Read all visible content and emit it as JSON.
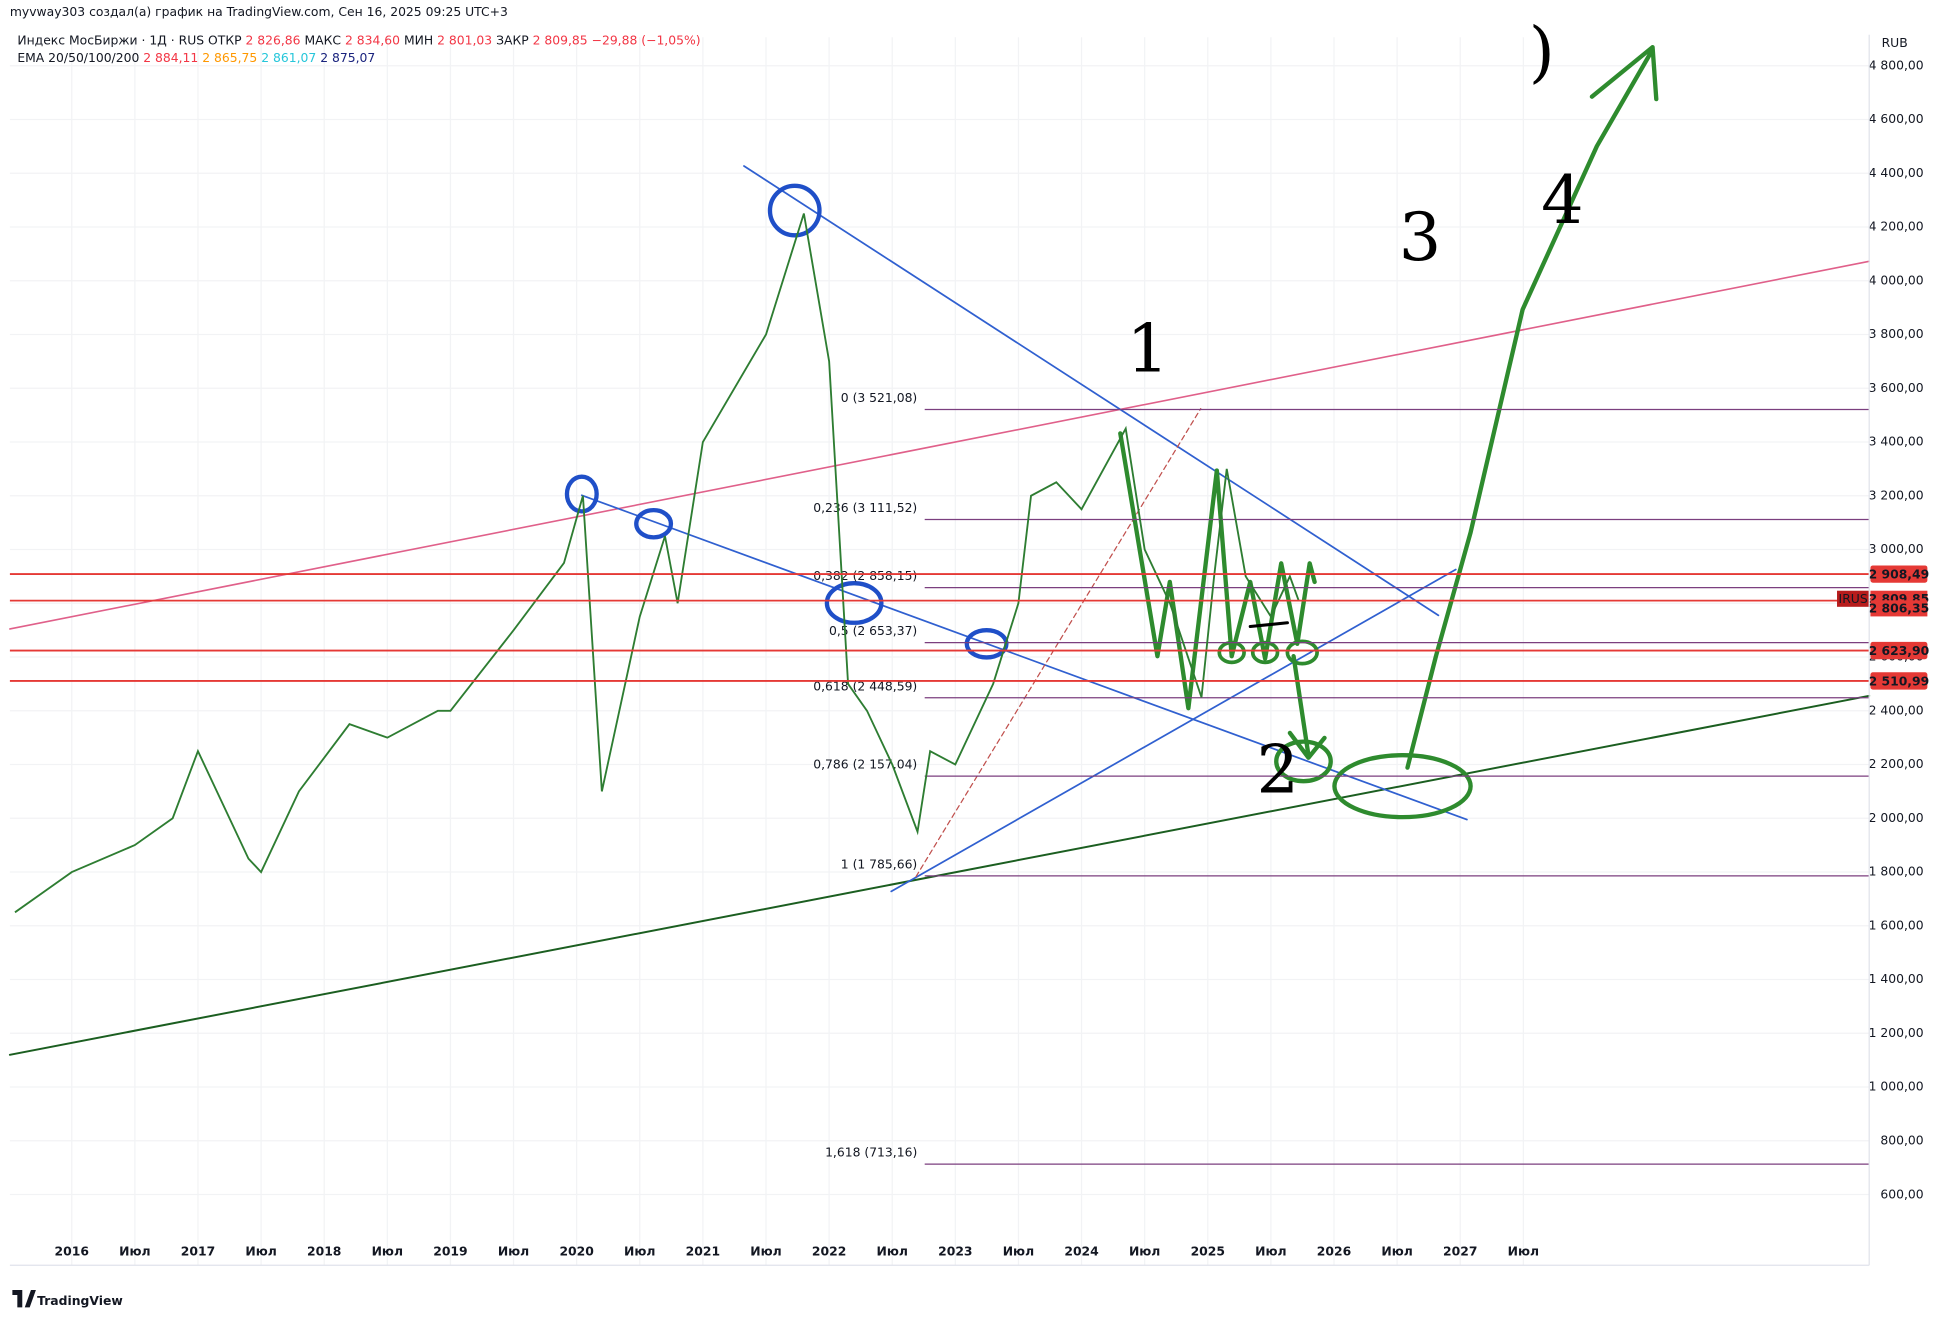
{
  "header": {
    "author_line": "myvway303 создал(а) график на TradingView.com, Сен 16, 2025 09:25 UTC+3",
    "symbol": "Индекс МосБиржи · 1Д · RUS",
    "ohlc": [
      {
        "label": "ОТКР",
        "value": "2 826,86"
      },
      {
        "label": "МАКС",
        "value": "2 834,60"
      },
      {
        "label": "МИН",
        "value": "2 801,03"
      },
      {
        "label": "ЗАКР",
        "value": "2 809,85"
      }
    ],
    "change": "−29,88 (−1,05%)",
    "ema_label": "EMA 20/50/100/200",
    "ema_values": [
      "2 884,11",
      "2 865,75",
      "2 861,07",
      "2 875,07"
    ]
  },
  "chart_data": {
    "type": "line",
    "currency": "RUB",
    "color": "#2e7d32",
    "x": [
      2015.55,
      2016.0,
      2016.5,
      2016.8,
      2017.0,
      2017.4,
      2017.5,
      2017.8,
      2018.2,
      2018.5,
      2018.9,
      2019.0,
      2019.5,
      2019.9,
      2020.05,
      2020.2,
      2020.5,
      2020.7,
      2020.8,
      2021.0,
      2021.5,
      2021.8,
      2022.0,
      2022.15,
      2022.3,
      2022.5,
      2022.7,
      2022.8,
      2023.0,
      2023.3,
      2023.5,
      2023.6,
      2023.8,
      2024.0,
      2024.35,
      2024.5,
      2024.7,
      2024.95,
      2025.05,
      2025.15,
      2025.3,
      2025.5,
      2025.65,
      2025.72
    ],
    "values": [
      1650,
      1800,
      1900,
      2000,
      2250,
      1850,
      1800,
      2100,
      2350,
      2300,
      2400,
      2400,
      2700,
      2950,
      3200,
      2100,
      2750,
      3050,
      2800,
      3400,
      3800,
      4250,
      3700,
      2500,
      2400,
      2200,
      1950,
      2250,
      2200,
      2500,
      2800,
      3200,
      3250,
      3150,
      3450,
      3000,
      2800,
      2450,
      2900,
      3300,
      2900,
      2750,
      2900,
      2810
    ],
    "xlim": [
      2015.51,
      2030.24
    ],
    "xticks": [
      {
        "value": 2016,
        "label": "2016"
      },
      {
        "value": 2016.5,
        "label": "Июл"
      },
      {
        "value": 2017,
        "label": "2017"
      },
      {
        "value": 2017.5,
        "label": "Июл"
      },
      {
        "value": 2018,
        "label": "2018"
      },
      {
        "value": 2018.5,
        "label": "Июл"
      },
      {
        "value": 2019,
        "label": "2019"
      },
      {
        "value": 2019.5,
        "label": "Июл"
      },
      {
        "value": 2020,
        "label": "2020"
      },
      {
        "value": 2020.5,
        "label": "Июл"
      },
      {
        "value": 2021,
        "label": "2021"
      },
      {
        "value": 2021.5,
        "label": "Июл"
      },
      {
        "value": 2022,
        "label": "2022"
      },
      {
        "value": 2022.5,
        "label": "Июл"
      },
      {
        "value": 2023,
        "label": "2023"
      },
      {
        "value": 2023.5,
        "label": "Июл"
      },
      {
        "value": 2024,
        "label": "2024"
      },
      {
        "value": 2024.5,
        "label": "Июл"
      },
      {
        "value": 2025,
        "label": "2025"
      },
      {
        "value": 2025.5,
        "label": "Июл"
      },
      {
        "value": 2026,
        "label": "2026"
      },
      {
        "value": 2026.5,
        "label": "Июл"
      },
      {
        "value": 2027,
        "label": "2027"
      },
      {
        "value": 2027.5,
        "label": "Июл"
      }
    ],
    "ylim": [
      337,
      4906
    ],
    "yticks": [
      {
        "value": 600,
        "label": "600,00"
      },
      {
        "value": 800,
        "label": "800,00"
      },
      {
        "value": 1000,
        "label": "1 000,00"
      },
      {
        "value": 1200,
        "label": "1 200,00"
      },
      {
        "value": 1400,
        "label": "1 400,00"
      },
      {
        "value": 1600,
        "label": "1 600,00"
      },
      {
        "value": 1800,
        "label": "1 800,00"
      },
      {
        "value": 2000,
        "label": "2 000,00"
      },
      {
        "value": 2200,
        "label": "2 200,00"
      },
      {
        "value": 2400,
        "label": "2 400,00"
      },
      {
        "value": 2600,
        "label": "2 600,00"
      },
      {
        "value": 2800,
        "label": "2 800,00"
      },
      {
        "value": 3000,
        "label": "3 000,00"
      },
      {
        "value": 3200,
        "label": "3 200,00"
      },
      {
        "value": 3400,
        "label": "3 400,00"
      },
      {
        "value": 3600,
        "label": "3 600,00"
      },
      {
        "value": 3800,
        "label": "3 800,00"
      },
      {
        "value": 4000,
        "label": "4 000,00"
      },
      {
        "value": 4200,
        "label": "4 200,00"
      },
      {
        "value": 4400,
        "label": "4 400,00"
      },
      {
        "value": 4600,
        "label": "4 600,00"
      },
      {
        "value": 4800,
        "label": "4 800,00"
      }
    ],
    "fib_levels": [
      {
        "value": 3521.08,
        "label": "0 (3 521,08)"
      },
      {
        "value": 3111.52,
        "label": "0,236 (3 111,52)"
      },
      {
        "value": 2858.15,
        "label": "0,382 (2 858,15)"
      },
      {
        "value": 2653.37,
        "label": "0,5 (2 653,37)"
      },
      {
        "value": 2448.59,
        "label": "0,618 (2 448,59)"
      },
      {
        "value": 2157.04,
        "label": "0,786 (2 157,04)"
      },
      {
        "value": 1785.66,
        "label": "1 (1 785,66)"
      },
      {
        "value": 713.16,
        "label": "1,618 (713,16)"
      }
    ],
    "price_lines": [
      {
        "value": 2908.49,
        "label": "2 908,49"
      },
      {
        "value": 2623.9,
        "label": "2 623,90"
      },
      {
        "value": 2510.99,
        "label": "2 510,99"
      }
    ],
    "last_price": {
      "ticker": "IRUS",
      "values": [
        2809.85,
        2806.35
      ],
      "value_labels": [
        "2 809,85",
        "2 806,35"
      ]
    },
    "annotations": [
      "1",
      "2",
      "3",
      "4",
      ")"
    ]
  },
  "brand": "TradingView"
}
